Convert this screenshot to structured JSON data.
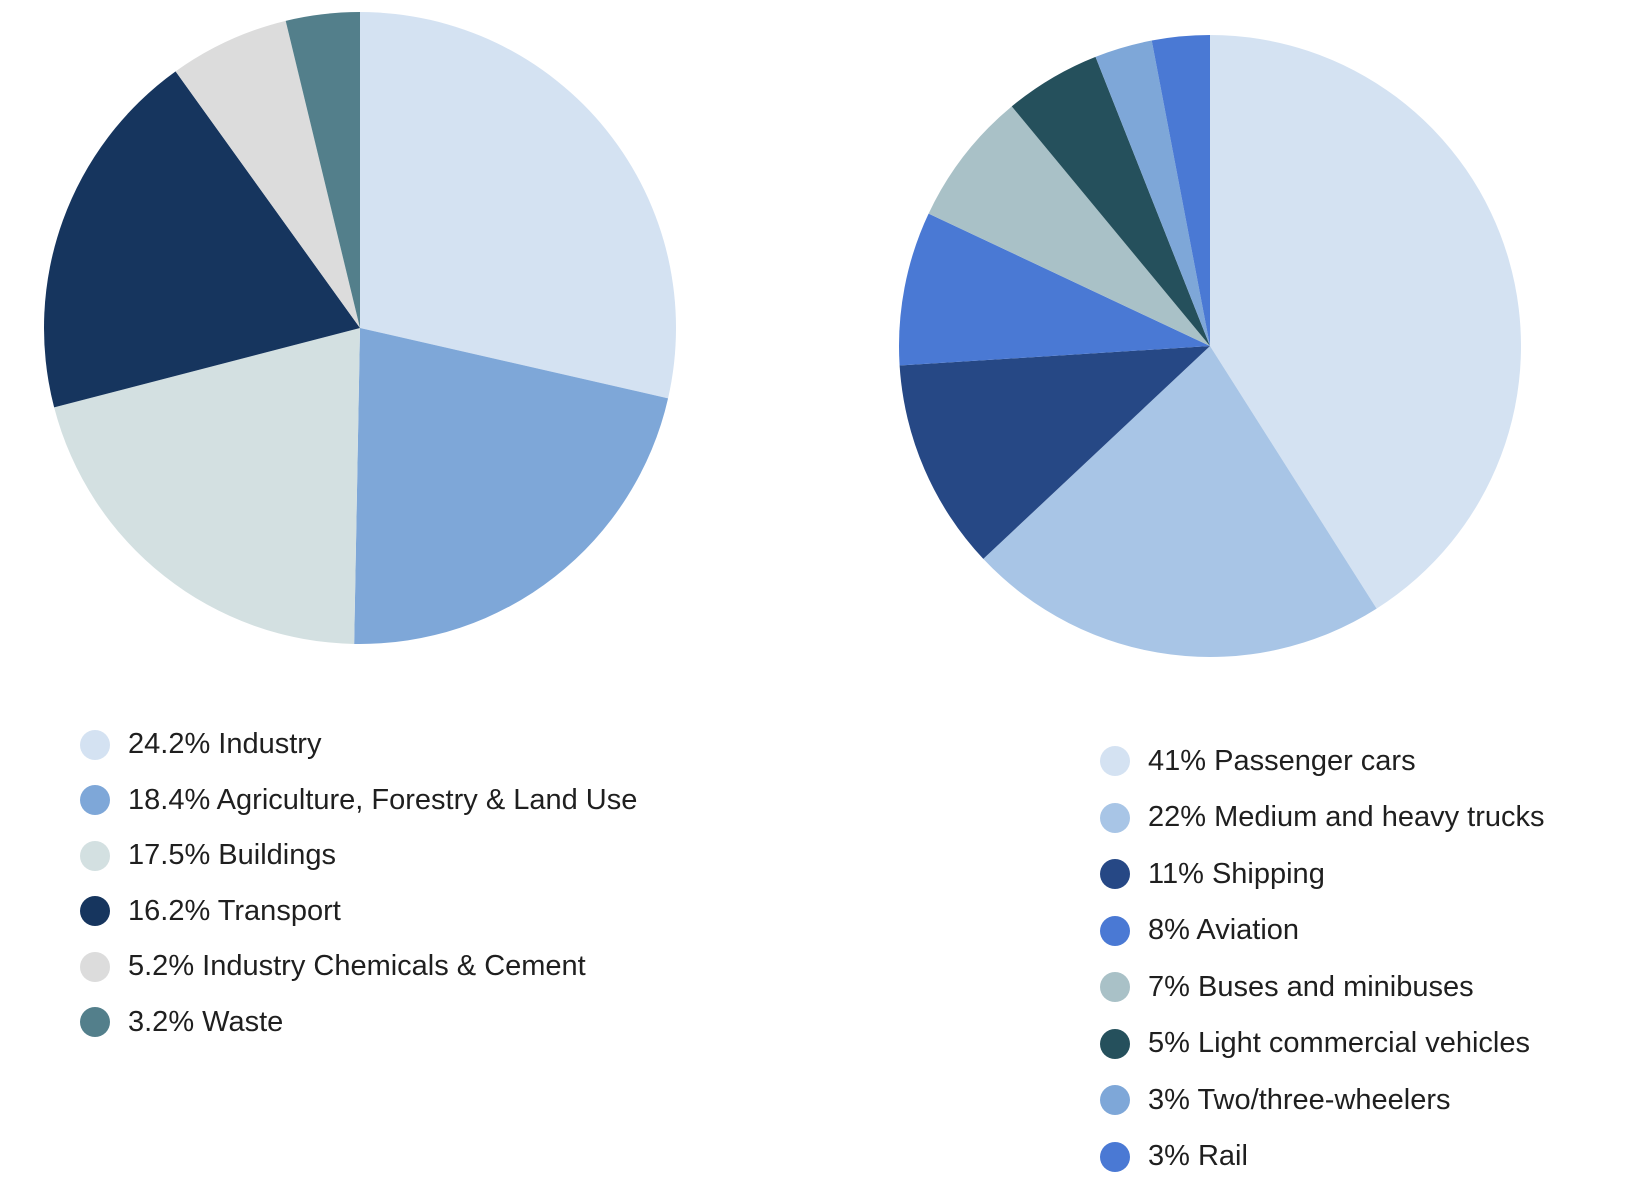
{
  "chart_data": [
    {
      "type": "pie",
      "title": "",
      "slices": [
        {
          "label": "24.2% Industry",
          "value": 24.2,
          "color": "#d4e2f2"
        },
        {
          "label": "18.4% Agriculture, Forestry & Land Use",
          "value": 18.4,
          "color": "#7ea7d8"
        },
        {
          "label": "17.5% Buildings",
          "value": 17.5,
          "color": "#d3e0e1"
        },
        {
          "label": "16.2% Transport",
          "value": 16.2,
          "color": "#16355e"
        },
        {
          "label": "5.2% Industry Chemicals & Cement",
          "value": 5.2,
          "color": "#dcdcdc"
        },
        {
          "label": "3.2% Waste",
          "value": 3.2,
          "color": "#537f8b"
        }
      ],
      "legend_position": "bottom-left"
    },
    {
      "type": "pie",
      "title": "",
      "slices": [
        {
          "label": "41% Passenger cars",
          "value": 41,
          "color": "#d4e2f2"
        },
        {
          "label": "22% Medium and heavy trucks",
          "value": 22,
          "color": "#a8c5e6"
        },
        {
          "label": "11% Shipping",
          "value": 11,
          "color": "#264885"
        },
        {
          "label": "8% Aviation",
          "value": 8,
          "color": "#4a79d4"
        },
        {
          "label": "7% Buses and minibuses",
          "value": 7,
          "color": "#a9c1c7"
        },
        {
          "label": "5% Light commercial vehicles",
          "value": 5,
          "color": "#25505c"
        },
        {
          "label": "3% Two/three-wheelers",
          "value": 3,
          "color": "#7ea7d8"
        },
        {
          "label": "3% Rail",
          "value": 3,
          "color": "#4a79d4"
        }
      ],
      "legend_position": "bottom-right"
    }
  ]
}
